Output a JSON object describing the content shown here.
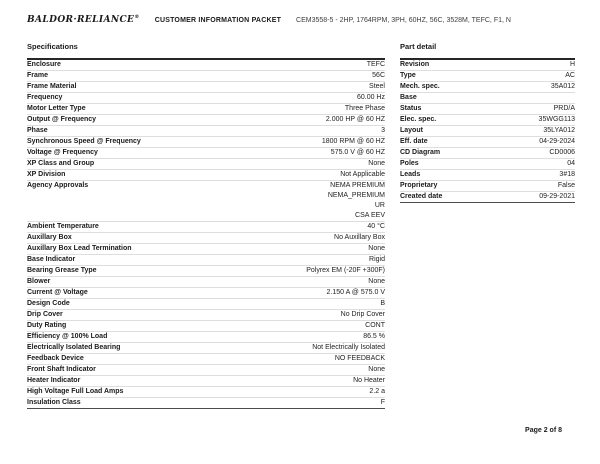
{
  "header": {
    "logo_text": "BALDOR·RELIANCE",
    "logo_mark": "®",
    "doc_title": "CUSTOMER INFORMATION PACKET",
    "product_code": "CEM3558-5 - 2HP, 1764RPM, 3PH, 60HZ, 56C, 3528M, TEFC, F1, N"
  },
  "specifications": {
    "title": "Specifications",
    "rows": [
      {
        "label": "Enclosure",
        "value": "TEFC"
      },
      {
        "label": "Frame",
        "value": "56C"
      },
      {
        "label": "Frame Material",
        "value": "Steel"
      },
      {
        "label": "Frequency",
        "value": "60.00 Hz"
      },
      {
        "label": "Motor Letter Type",
        "value": "Three Phase"
      },
      {
        "label": "Output @ Frequency",
        "value": "2.000 HP @ 60 HZ"
      },
      {
        "label": "Phase",
        "value": "3"
      },
      {
        "label": "Synchronous Speed @ Frequency",
        "value": "1800 RPM @ 60 HZ"
      },
      {
        "label": "Voltage @ Frequency",
        "value": "575.0 V @ 60 HZ"
      },
      {
        "label": "XP Class and Group",
        "value": "None"
      },
      {
        "label": "XP Division",
        "value": "Not Applicable"
      },
      {
        "label": "Agency Approvals",
        "value": [
          "NEMA PREMIUM",
          "NEMA_PREMIUM",
          "UR",
          "CSA EEV"
        ]
      },
      {
        "label": "Ambient Temperature",
        "value": "40 °C"
      },
      {
        "label": "Auxillary Box",
        "value": "No Auxillary Box"
      },
      {
        "label": "Auxillary Box Lead Termination",
        "value": "None"
      },
      {
        "label": "Base Indicator",
        "value": "Rigid"
      },
      {
        "label": "Bearing Grease Type",
        "value": "Polyrex EM (-20F +300F)"
      },
      {
        "label": "Blower",
        "value": "None"
      },
      {
        "label": "Current @ Voltage",
        "value": "2.150 A @ 575.0 V"
      },
      {
        "label": "Design Code",
        "value": "B"
      },
      {
        "label": "Drip Cover",
        "value": "No Drip Cover"
      },
      {
        "label": "Duty Rating",
        "value": "CONT"
      },
      {
        "label": "Efficiency @ 100% Load",
        "value": "86.5 %"
      },
      {
        "label": "Electrically Isolated Bearing",
        "value": "Not Electrically Isolated"
      },
      {
        "label": "Feedback Device",
        "value": "NO FEEDBACK"
      },
      {
        "label": "Front Shaft Indicator",
        "value": "None"
      },
      {
        "label": "Heater Indicator",
        "value": "No Heater"
      },
      {
        "label": "High Voltage Full Load Amps",
        "value": "2.2 a"
      },
      {
        "label": "Insulation Class",
        "value": "F"
      }
    ]
  },
  "part_detail": {
    "title": "Part detail",
    "rows": [
      {
        "label": "Revision",
        "value": "H"
      },
      {
        "label": "Type",
        "value": "AC"
      },
      {
        "label": "Mech. spec.",
        "value": "35A012"
      },
      {
        "label": "Base",
        "value": ""
      },
      {
        "label": "Status",
        "value": "PRD/A"
      },
      {
        "label": "Elec. spec.",
        "value": "35WGG113"
      },
      {
        "label": "Layout",
        "value": "35LYA012"
      },
      {
        "label": "Eff. date",
        "value": "04-29-2024"
      },
      {
        "label": "CD Diagram",
        "value": "CD0006"
      },
      {
        "label": "Poles",
        "value": "04"
      },
      {
        "label": "Leads",
        "value": "3#18"
      },
      {
        "label": "Proprietary",
        "value": "False"
      },
      {
        "label": "Created date",
        "value": "09-29-2021"
      }
    ]
  },
  "footer": {
    "page_label": "Page 2 of 8"
  }
}
